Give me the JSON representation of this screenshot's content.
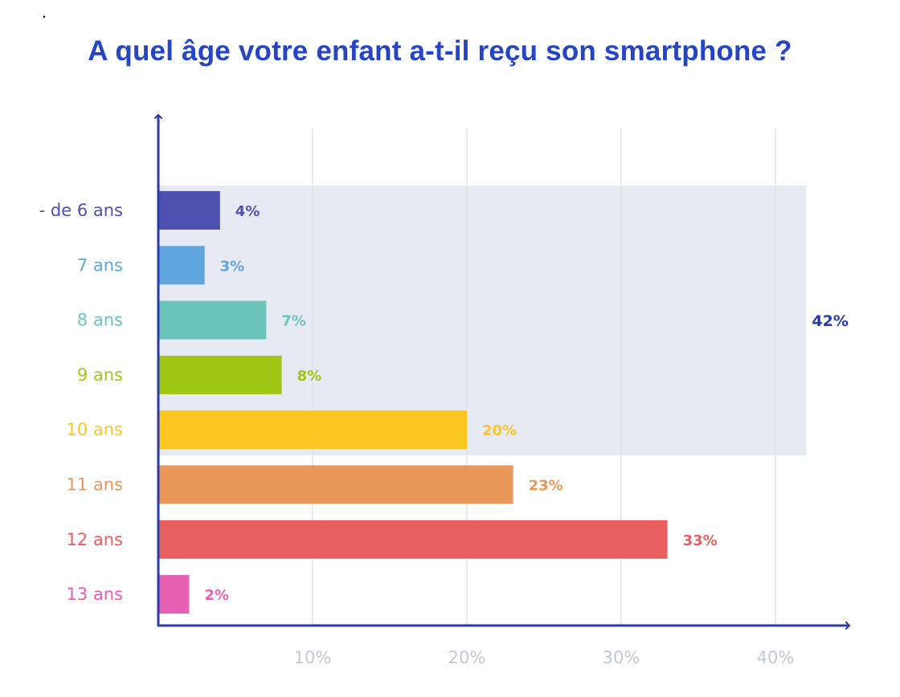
{
  "page": {
    "dot": "."
  },
  "chart_data": {
    "type": "bar",
    "orientation": "horizontal",
    "title": "A quel âge votre enfant a-t-il reçu son smartphone ?",
    "xlabel": "",
    "ylabel": "",
    "xlim": [
      0,
      45
    ],
    "x_ticks": [
      10,
      20,
      30,
      40
    ],
    "x_tick_labels": [
      "10%",
      "20%",
      "30%",
      "40%"
    ],
    "grid": true,
    "categories": [
      "- de 6 ans",
      "7 ans",
      "8 ans",
      "9 ans",
      "10 ans",
      "11 ans",
      "12 ans",
      "13 ans"
    ],
    "values": [
      4,
      3,
      7,
      8,
      20,
      23,
      33,
      2
    ],
    "value_labels": [
      "4%",
      "3%",
      "7%",
      "8%",
      "20%",
      "23%",
      "33%",
      "2%"
    ],
    "colors": [
      "#4f51b0",
      "#5ea5dd",
      "#6cc5bc",
      "#9ec813",
      "#fcc623",
      "#ea975a",
      "#e85f60",
      "#e660b4"
    ],
    "group_highlight": {
      "from_category": "- de 6 ans",
      "to_category": "10 ans",
      "value": 42,
      "label": "42%",
      "fill": "#e7e9f3"
    },
    "axis_color": "#2a3ca5",
    "grid_color": "#dfe2ec"
  }
}
